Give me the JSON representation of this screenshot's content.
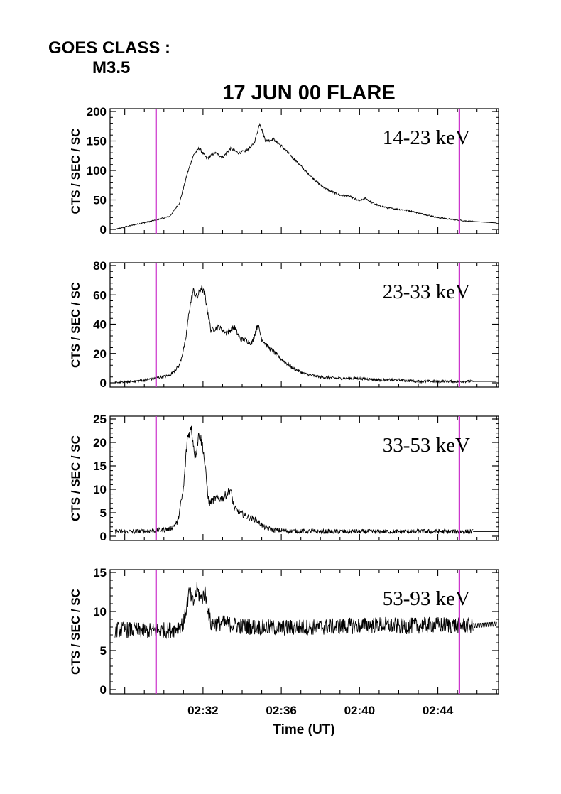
{
  "header": {
    "goes_label": "GOES CLASS :",
    "goes_class": "M3.5"
  },
  "chart_data": {
    "type": "line",
    "title": "17 JUN 00 FLARE",
    "xlabel": "Time (UT)",
    "x_ticks": [
      "02:32",
      "02:36",
      "02:40",
      "02:44"
    ],
    "x_tick_minutes": [
      2,
      6,
      10,
      14
    ],
    "xlim_minutes": [
      -2.75,
      17.1
    ],
    "x_unit_note": "minutes after 02:30 UT",
    "vertical_markers_minutes": [
      -0.4,
      15.1
    ],
    "marker_color": "#cc33cc",
    "panels": [
      {
        "band": "14-23 keV",
        "ylabel": "CTS / SEC / SC",
        "ylim": [
          0,
          200
        ],
        "yticks": [
          0,
          50,
          100,
          150,
          200
        ],
        "series": {
          "x": [
            -2.5,
            -1.5,
            -0.5,
            0.3,
            0.8,
            1.2,
            1.5,
            1.8,
            2.2,
            2.6,
            3.0,
            3.4,
            3.8,
            4.2,
            4.6,
            4.9,
            5.2,
            5.6,
            6.0,
            6.4,
            6.8,
            7.2,
            7.6,
            8.0,
            8.5,
            9.0,
            9.5,
            10.0,
            10.3,
            10.6,
            11.0,
            11.5,
            12.0,
            12.5,
            13.0,
            13.5,
            14.0,
            14.5,
            15.0,
            15.5,
            16.0,
            16.5,
            17.0
          ],
          "y": [
            0,
            8,
            15,
            22,
            45,
            95,
            125,
            138,
            120,
            130,
            122,
            137,
            130,
            133,
            145,
            180,
            150,
            153,
            142,
            128,
            115,
            100,
            88,
            75,
            65,
            58,
            56,
            48,
            53,
            46,
            40,
            36,
            34,
            32,
            28,
            24,
            20,
            18,
            16,
            14,
            13,
            12,
            11
          ]
        }
      },
      {
        "band": "23-33 keV",
        "ylabel": "CTS / SEC / SC",
        "ylim": [
          0,
          80
        ],
        "yticks": [
          0,
          20,
          40,
          60,
          80
        ],
        "series": {
          "x": [
            -2.5,
            -1.5,
            -0.5,
            0.3,
            0.8,
            1.1,
            1.3,
            1.5,
            1.7,
            1.9,
            2.1,
            2.4,
            2.8,
            3.2,
            3.6,
            3.9,
            4.2,
            4.5,
            4.8,
            5.0,
            5.3,
            5.7,
            6.1,
            6.6,
            7.2,
            8.0,
            9.0,
            10.0,
            11.0,
            12.0,
            13.0,
            14.0,
            15.0,
            16.0,
            17.0
          ],
          "y": [
            0,
            1,
            3,
            5,
            12,
            28,
            50,
            63,
            58,
            65,
            60,
            36,
            38,
            34,
            38,
            30,
            29,
            27,
            40,
            30,
            25,
            20,
            15,
            10,
            6,
            4,
            3,
            3,
            2,
            2,
            1,
            1,
            1,
            1,
            1
          ]
        }
      },
      {
        "band": "33-53 keV",
        "ylabel": "CTS / SEC / SC",
        "ylim": [
          0,
          25
        ],
        "yticks": [
          0,
          5,
          10,
          15,
          20,
          25
        ],
        "series": {
          "x": [
            -2.5,
            -1.5,
            -0.5,
            0.3,
            0.7,
            1.0,
            1.2,
            1.4,
            1.6,
            1.8,
            2.0,
            2.3,
            2.6,
            3.0,
            3.4,
            3.6,
            3.9,
            4.3,
            4.7,
            5.1,
            5.6,
            6.5,
            8.0,
            10.0,
            12.0,
            14.0,
            15.0,
            16.0,
            17.0
          ],
          "y": [
            1,
            1,
            1.2,
            1.5,
            3,
            10,
            21,
            23,
            17,
            22,
            19,
            7,
            8,
            8,
            10,
            6,
            5,
            4,
            3.5,
            2,
            1.3,
            1.1,
            1,
            1,
            1,
            1,
            1,
            1,
            1
          ]
        }
      },
      {
        "band": "53-93 keV",
        "ylabel": "CTS / SEC / SC",
        "ylim": [
          0,
          15
        ],
        "yticks": [
          0,
          5,
          10,
          15
        ],
        "series": {
          "x": [
            -2.5,
            -1.5,
            -0.5,
            0.5,
            1.0,
            1.3,
            1.5,
            1.7,
            1.9,
            2.1,
            2.4,
            3.0,
            4.0,
            5.0,
            6.0,
            7.0,
            8.0,
            9.0,
            10.0,
            11.0,
            12.0,
            13.0,
            14.0,
            15.0,
            16.0,
            17.0
          ],
          "y": [
            7.7,
            7.6,
            7.5,
            7.7,
            8.5,
            12.5,
            11.0,
            12.8,
            11.5,
            12.5,
            8.4,
            8.5,
            8.1,
            8.0,
            7.9,
            8.0,
            8.0,
            8.1,
            8.2,
            8.3,
            8.1,
            8.2,
            8.3,
            8.2,
            8.2,
            8.4
          ]
        }
      }
    ]
  }
}
